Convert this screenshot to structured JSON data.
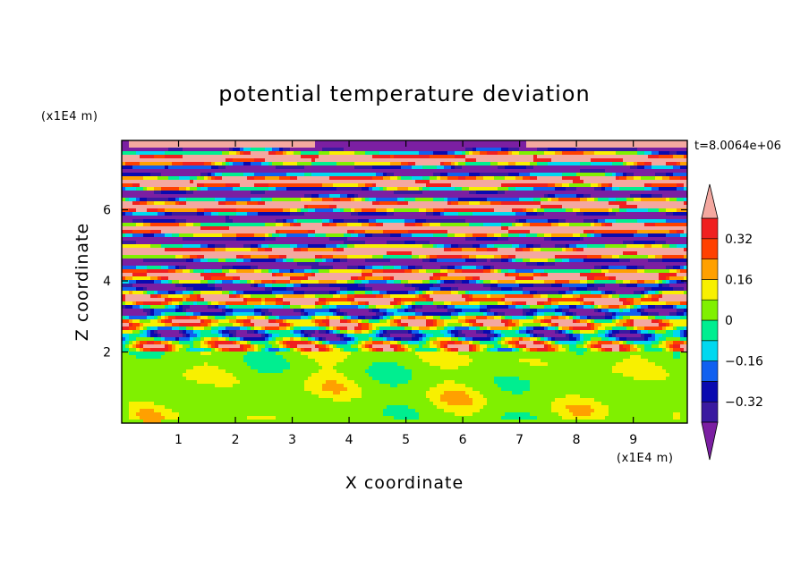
{
  "chart_data": {
    "type": "heatmap",
    "title": "potential temperature deviation",
    "xlabel": "X coordinate",
    "ylabel": "Z coordinate",
    "x_unit": "(x1E4 m)",
    "y_unit": "(x1E4 m)",
    "time_label": "t=8.0064e+06",
    "xlim": [
      0,
      9.95
    ],
    "ylim": [
      0,
      7.95
    ],
    "x_ticks": [
      1,
      2,
      3,
      4,
      5,
      6,
      7,
      8,
      9
    ],
    "y_ticks": [
      2,
      4,
      6
    ],
    "colorbar": {
      "levels": [
        -0.4,
        -0.32,
        -0.24,
        -0.16,
        -0.08,
        0,
        0.08,
        0.16,
        0.24,
        0.32,
        0.4
      ],
      "tick_labels": [
        "0.32",
        "0.16",
        "0",
        "−0.16",
        "−0.32"
      ],
      "tick_values": [
        0.32,
        0.16,
        0,
        -0.16,
        -0.32
      ],
      "colors": [
        "#7b1fa2",
        "#3a1aa0",
        "#0a0ab0",
        "#1060f0",
        "#00d8f0",
        "#00ee90",
        "#80f000",
        "#f8f000",
        "#ffa000",
        "#ff4000",
        "#f02020",
        "#f4a8a0"
      ]
    },
    "regions": [
      {
        "description_value": 0.02,
        "z_range": [
          0,
          2.0
        ]
      },
      {
        "description_value": "banded alternating -0.4 to 0.4",
        "z_range": [
          2.0,
          7.95
        ]
      }
    ]
  }
}
